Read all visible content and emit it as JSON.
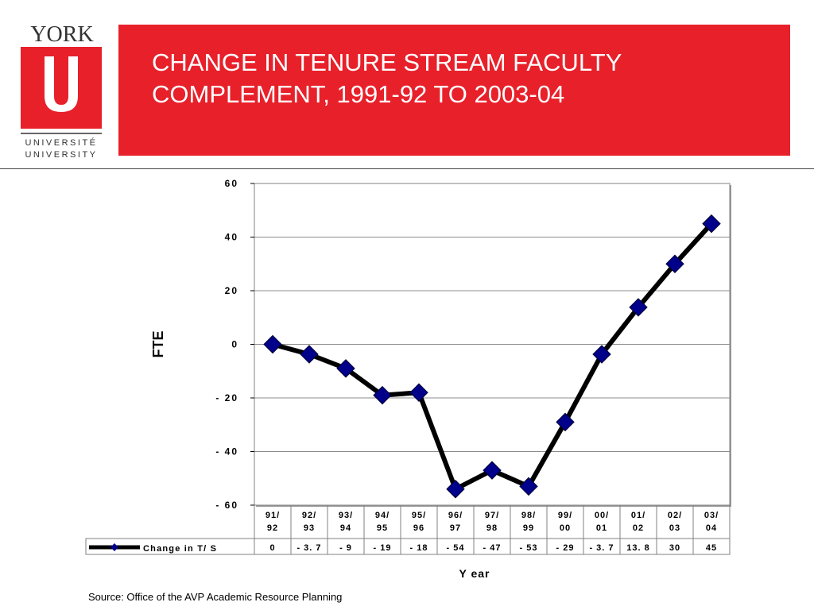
{
  "logo": {
    "wordmark": "YORK",
    "letter": "U",
    "line1": "UNIVERSITÉ",
    "line2": "UNIVERSITY"
  },
  "title": "CHANGE IN TENURE STREAM FACULTY\nCOMPLEMENT, 1991-92 TO 2003-04",
  "source": "Source: Office of the AVP Academic Resource Planning",
  "colors": {
    "banner": "#e8202a",
    "marker": "#00008b",
    "line": "#000000"
  },
  "chart_data": {
    "type": "line",
    "ylabel": "FTE",
    "xlabel": "Y ear",
    "ylim": [
      -60,
      60
    ],
    "yticks": [
      "60",
      "40",
      "20",
      "0",
      "- 20",
      "- 40",
      "- 60"
    ],
    "ytick_values": [
      60,
      40,
      20,
      0,
      -20,
      -40,
      -60
    ],
    "categories": [
      [
        "91/",
        "92"
      ],
      [
        "92/",
        "93"
      ],
      [
        "93/",
        "94"
      ],
      [
        "94/",
        "95"
      ],
      [
        "95/",
        "96"
      ],
      [
        "96/",
        "97"
      ],
      [
        "97/",
        "98"
      ],
      [
        "98/",
        "99"
      ],
      [
        "99/",
        "00"
      ],
      [
        "00/",
        "01"
      ],
      [
        "01/",
        "02"
      ],
      [
        "02/",
        "03"
      ],
      [
        "03/",
        "04"
      ]
    ],
    "series": [
      {
        "name": "Change in T/ S",
        "values": [
          0,
          -3.7,
          -9,
          -19,
          -18,
          -54,
          -47,
          -53,
          -29,
          -3.7,
          13.8,
          30,
          45
        ],
        "value_labels": [
          "0",
          "- 3. 7",
          "- 9",
          "- 19",
          "- 18",
          "- 54",
          "- 47",
          "- 53",
          "- 29",
          "- 3. 7",
          "13. 8",
          "30",
          "45"
        ]
      }
    ],
    "grid": true,
    "legend": "data-table"
  }
}
